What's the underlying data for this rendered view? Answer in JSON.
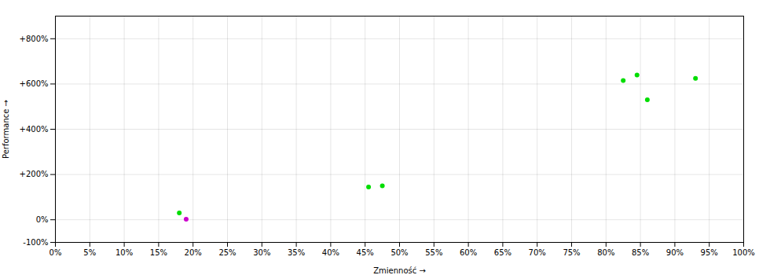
{
  "chart_data": {
    "type": "scatter",
    "x": [
      0.18,
      0.19,
      0.455,
      0.475,
      0.825,
      0.845,
      0.86,
      0.93
    ],
    "values": [
      0.3,
      0.02,
      1.45,
      1.5,
      6.15,
      6.4,
      5.3,
      6.25
    ],
    "colors": [
      "#00dd00",
      "#cc00cc",
      "#00dd00",
      "#00dd00",
      "#00dd00",
      "#00dd00",
      "#00dd00",
      "#00dd00"
    ],
    "xlabel": "Zmienność",
    "ylabel": "Performance",
    "xlim": [
      0.0,
      1.0
    ],
    "ylim": [
      -1.0,
      9.0
    ],
    "xticks": [
      {
        "value": 0.0,
        "label": "0%"
      },
      {
        "value": 0.05,
        "label": "5%"
      },
      {
        "value": 0.1,
        "label": "10%"
      },
      {
        "value": 0.15,
        "label": "15%"
      },
      {
        "value": 0.2,
        "label": "20%"
      },
      {
        "value": 0.25,
        "label": "25%"
      },
      {
        "value": 0.3,
        "label": "30%"
      },
      {
        "value": 0.35,
        "label": "35%"
      },
      {
        "value": 0.4,
        "label": "40%"
      },
      {
        "value": 0.45,
        "label": "45%"
      },
      {
        "value": 0.5,
        "label": "50%"
      },
      {
        "value": 0.55,
        "label": "55%"
      },
      {
        "value": 0.6,
        "label": "60%"
      },
      {
        "value": 0.65,
        "label": "65%"
      },
      {
        "value": 0.7,
        "label": "70%"
      },
      {
        "value": 0.75,
        "label": "75%"
      },
      {
        "value": 0.8,
        "label": "80%"
      },
      {
        "value": 0.85,
        "label": "85%"
      },
      {
        "value": 0.9,
        "label": "90%"
      },
      {
        "value": 0.95,
        "label": "95%"
      },
      {
        "value": 1.0,
        "label": "100%"
      }
    ],
    "yticks": [
      {
        "value": -1.0,
        "label": "-100%"
      },
      {
        "value": 0.0,
        "label": "0%"
      },
      {
        "value": 2.0,
        "label": "+200%"
      },
      {
        "value": 4.0,
        "label": "+400%"
      },
      {
        "value": 6.0,
        "label": "+600%"
      },
      {
        "value": 8.0,
        "label": "+800%"
      }
    ],
    "grid": true
  }
}
